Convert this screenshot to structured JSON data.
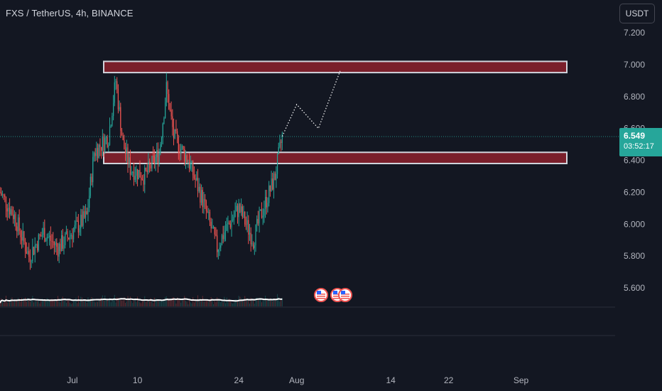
{
  "header": {
    "title": "FXS / TetherUS, 4h, BINANCE",
    "currency": "USDT"
  },
  "last_price": {
    "price": "6.549",
    "countdown": "03:52:17"
  },
  "colors": {
    "background": "#131722",
    "grid": "#1e222d",
    "up": "#26a69a",
    "down": "#ef5350",
    "zone_fill": "#7a1f2b",
    "zone_border": "#d1d4dc",
    "moving_average": "#ffffff",
    "projection": "#ffffff",
    "axis_text": "#b2b5be"
  },
  "chart_data": {
    "type": "candlestick",
    "interval": "4h",
    "y_axis": {
      "side": "right",
      "ticks": [
        "7.200",
        "7.000",
        "6.800",
        "6.600",
        "6.400",
        "6.200",
        "6.000",
        "5.800",
        "5.600"
      ],
      "ylim": [
        5.5,
        7.2
      ]
    },
    "x_axis": {
      "ticks": [
        "Jul",
        "10",
        "24",
        "Aug",
        "14",
        "22",
        "Sep"
      ],
      "tick_dates": [
        "07-01",
        "07-10",
        "07-24",
        "08-01",
        "08-14",
        "08-22",
        "09-01"
      ],
      "xlim": [
        "06-21",
        "09-14"
      ]
    },
    "price_path": [
      [
        "06-21",
        6.2
      ],
      [
        "06-23",
        6.05
      ],
      [
        "06-25",
        5.8
      ],
      [
        "06-27",
        5.95
      ],
      [
        "06-29",
        5.85
      ],
      [
        "07-01",
        5.95
      ],
      [
        "07-03",
        6.05
      ],
      [
        "07-04",
        6.45
      ],
      [
        "07-06",
        6.55
      ],
      [
        "07-07",
        6.9
      ],
      [
        "07-08",
        6.5
      ],
      [
        "07-09",
        6.35
      ],
      [
        "07-11",
        6.3
      ],
      [
        "07-13",
        6.45
      ],
      [
        "07-14",
        6.85
      ],
      [
        "07-15",
        6.55
      ],
      [
        "07-17",
        6.4
      ],
      [
        "07-19",
        6.15
      ],
      [
        "07-21",
        5.85
      ],
      [
        "07-22",
        5.95
      ],
      [
        "07-24",
        6.1
      ],
      [
        "07-26",
        5.9
      ],
      [
        "07-27",
        6.05
      ],
      [
        "07-29",
        6.3
      ],
      [
        "07-30",
        6.55
      ]
    ],
    "resistance_zones": [
      {
        "from": 6.95,
        "to": 7.02
      },
      {
        "from": 6.38,
        "to": 6.45
      }
    ],
    "projection_path": [
      [
        "07-30",
        6.55
      ],
      [
        "08-01",
        6.75
      ],
      [
        "08-04",
        6.6
      ],
      [
        "08-07",
        6.96
      ]
    ],
    "last_price_line": 6.549,
    "volume_ma": true,
    "event_markers": 3,
    "grid": false
  }
}
